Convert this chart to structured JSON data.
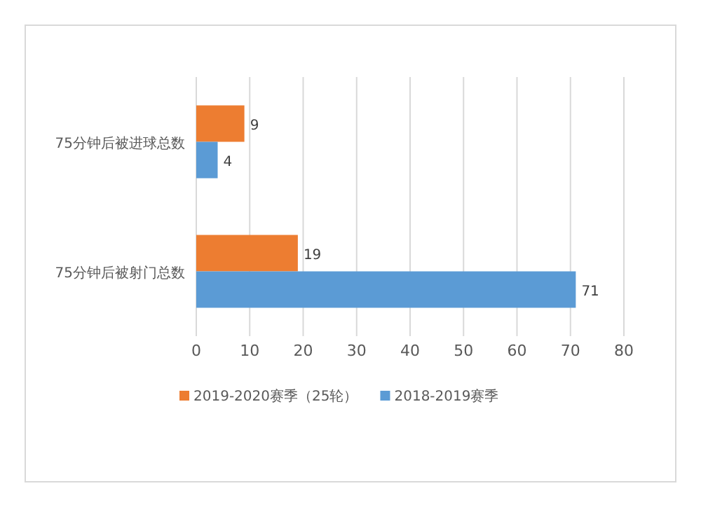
{
  "chart_data": {
    "type": "bar",
    "orientation": "horizontal",
    "categories": [
      "75分钟后被进球总数",
      "75分钟后被射门总数"
    ],
    "series": [
      {
        "name": "2019-2020赛季（25轮）",
        "color": "#ed7d31",
        "values": [
          9,
          19
        ]
      },
      {
        "name": "2018-2019赛季",
        "color": "#5b9bd5",
        "values": [
          4,
          71
        ]
      }
    ],
    "xlim": [
      0,
      80
    ],
    "xticks": [
      0,
      10,
      20,
      30,
      40,
      50,
      60,
      70,
      80
    ],
    "grid": "x",
    "legend": "bottom",
    "data_labels": true
  }
}
